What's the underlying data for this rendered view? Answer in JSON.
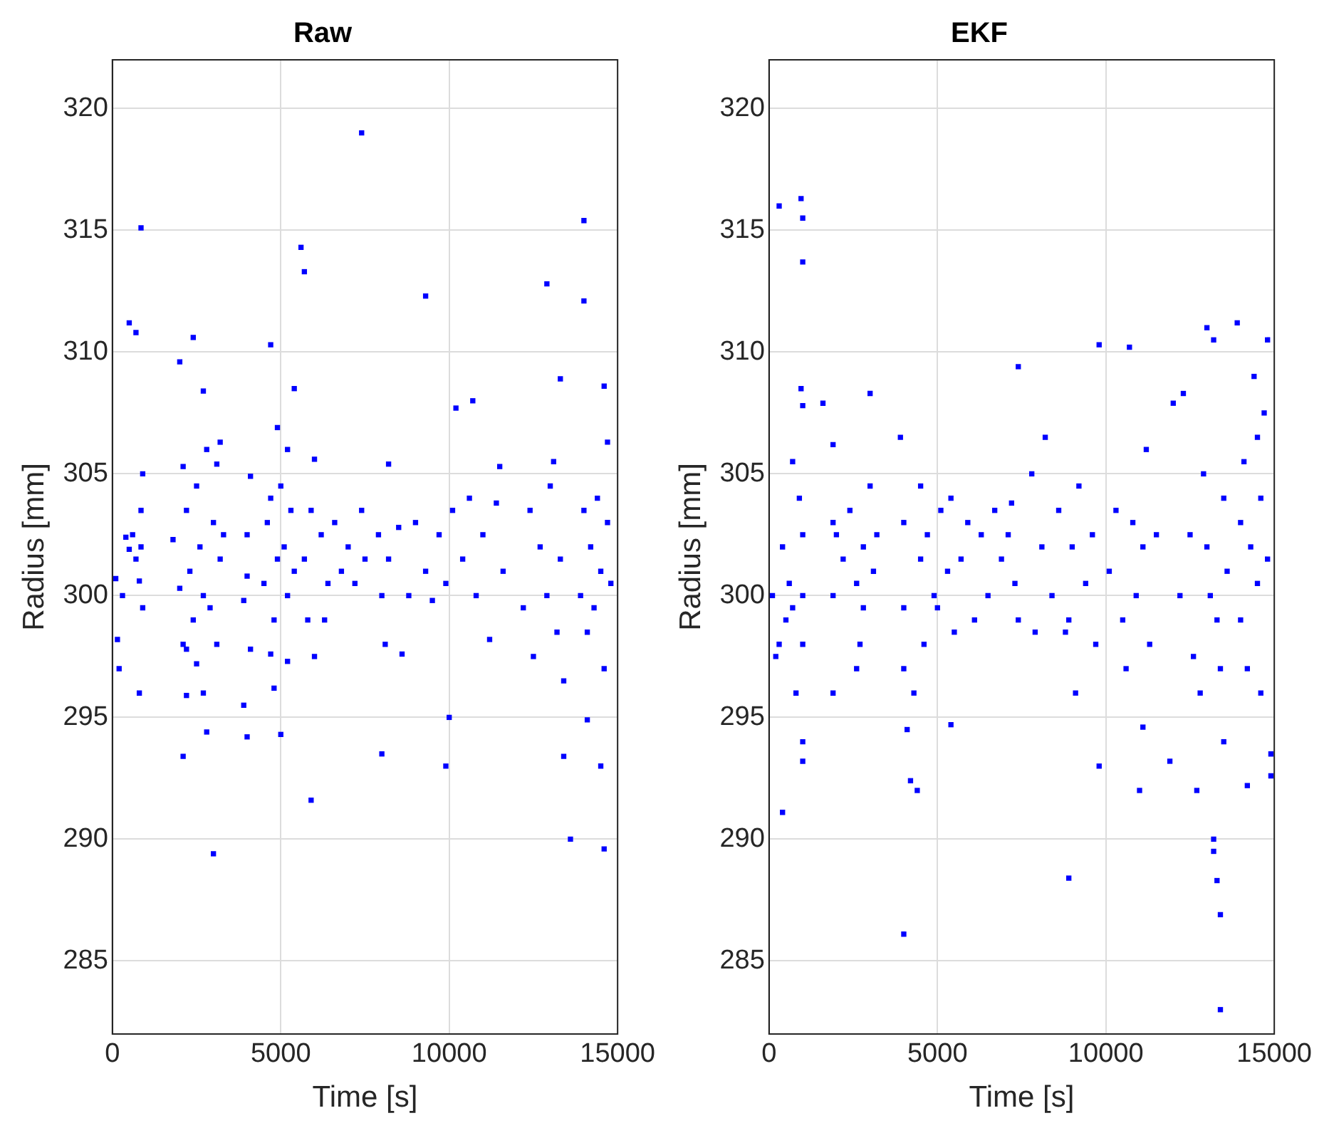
{
  "chart_data": [
    {
      "type": "scatter",
      "title": "Raw",
      "xlabel": "Time [s]",
      "ylabel": "Radius [mm]",
      "xlim": [
        0,
        15000
      ],
      "xticks": [
        0,
        5000,
        10000,
        15000
      ],
      "ylim": [
        282,
        322
      ],
      "yticks": [
        285,
        290,
        295,
        300,
        305,
        310,
        315,
        320
      ],
      "grid": true,
      "marker": "square",
      "legend": false,
      "series": [
        {
          "color": "#0000ff",
          "x": [
            100,
            150,
            200,
            300,
            400,
            500,
            600,
            700,
            800,
            850,
            900,
            800,
            850,
            900,
            500,
            700,
            850,
            1800,
            2000,
            2100,
            2100,
            2200,
            2300,
            2400,
            2500,
            2600,
            2700,
            2800,
            2900,
            3000,
            3100,
            3200,
            3300,
            2500,
            2700,
            3100,
            2200,
            2000,
            2400,
            2200,
            2100,
            2800,
            3000,
            2700,
            3200,
            3900,
            4000,
            4100,
            4000,
            4100,
            3900,
            4000,
            4500,
            4600,
            4700,
            4800,
            4900,
            5000,
            5100,
            5200,
            5300,
            5400,
            4700,
            4900,
            5200,
            5400,
            4700,
            4800,
            5000,
            5200,
            5700,
            5800,
            5900,
            6000,
            6200,
            6400,
            6600,
            6800,
            7000,
            7200,
            7400,
            7500,
            5600,
            5700,
            5900,
            7400,
            6000,
            6300,
            7900,
            8000,
            8100,
            8200,
            8500,
            8800,
            9000,
            9300,
            9500,
            9700,
            8000,
            8200,
            9300,
            8600,
            9900,
            10100,
            10000,
            9900,
            10200,
            10400,
            10600,
            10800,
            11000,
            11200,
            11400,
            11600,
            10700,
            11500,
            12200,
            12400,
            12500,
            12700,
            12900,
            13000,
            13200,
            13300,
            13400,
            12900,
            13300,
            13600,
            13400,
            13100,
            13900,
            14000,
            14100,
            14200,
            14300,
            14400,
            14500,
            14600,
            14700,
            14800,
            14000,
            14000,
            14100,
            14500,
            14600,
            14600,
            14700
          ],
          "values": [
            300.7,
            298.2,
            297.0,
            300.0,
            302.4,
            301.9,
            302.5,
            301.5,
            300.6,
            303.5,
            305.0,
            296.0,
            302.0,
            299.5,
            311.2,
            310.8,
            315.1,
            302.3,
            300.3,
            305.3,
            298.0,
            303.5,
            301.0,
            299.0,
            304.5,
            302.0,
            300.0,
            306.0,
            299.5,
            303.0,
            305.4,
            301.5,
            302.5,
            297.2,
            296.0,
            298.0,
            297.8,
            309.6,
            310.6,
            295.9,
            293.4,
            294.4,
            289.4,
            308.4,
            306.3,
            299.8,
            302.5,
            304.9,
            300.8,
            297.8,
            295.5,
            294.2,
            300.5,
            303.0,
            304.0,
            299.0,
            301.5,
            304.5,
            302.0,
            300.0,
            303.5,
            301.0,
            310.3,
            306.9,
            306.0,
            308.5,
            297.6,
            296.2,
            294.3,
            297.3,
            301.5,
            299.0,
            303.5,
            297.5,
            302.5,
            300.5,
            303.0,
            301.0,
            302.0,
            300.5,
            303.5,
            301.5,
            314.3,
            313.3,
            291.6,
            319.0,
            305.6,
            299.0,
            302.5,
            300.0,
            298.0,
            301.5,
            302.8,
            300.0,
            303.0,
            301.0,
            299.8,
            302.5,
            293.5,
            305.4,
            312.3,
            297.6,
            300.5,
            303.5,
            295.0,
            293.0,
            307.7,
            301.5,
            304.0,
            300.0,
            302.5,
            298.2,
            303.8,
            301.0,
            308.0,
            305.3,
            299.5,
            303.5,
            297.5,
            302.0,
            300.0,
            304.5,
            298.5,
            301.5,
            296.5,
            312.8,
            308.9,
            290.0,
            293.4,
            305.5,
            300.0,
            303.5,
            298.5,
            302.0,
            299.5,
            304.0,
            301.0,
            297.0,
            303.0,
            300.5,
            315.4,
            312.1,
            294.9,
            293.0,
            289.6,
            308.6,
            306.3
          ]
        }
      ]
    },
    {
      "type": "scatter",
      "title": "EKF",
      "xlabel": "Time [s]",
      "ylabel": "Radius [mm]",
      "xlim": [
        0,
        15000
      ],
      "xticks": [
        0,
        5000,
        10000,
        15000
      ],
      "ylim": [
        282,
        322
      ],
      "yticks": [
        285,
        290,
        295,
        300,
        305,
        310,
        315,
        320
      ],
      "grid": true,
      "marker": "square",
      "legend": false,
      "series": [
        {
          "color": "#0000ff",
          "x": [
            100,
            200,
            300,
            400,
            400,
            300,
            500,
            600,
            700,
            800,
            900,
            1000,
            1000,
            1000,
            1000,
            1000,
            950,
            1000,
            950,
            1000,
            1000,
            700,
            1600,
            1900,
            1900,
            1900,
            1900,
            2000,
            2200,
            2400,
            2600,
            2800,
            3000,
            3100,
            3200,
            2600,
            2700,
            3000,
            2800,
            3900,
            4000,
            4000,
            4000,
            4100,
            4200,
            4300,
            4000,
            4400,
            4500,
            4600,
            4700,
            4900,
            5100,
            5300,
            5400,
            5500,
            5000,
            4500,
            5400,
            5700,
            5900,
            6100,
            6300,
            6500,
            6700,
            6900,
            7100,
            7300,
            7400,
            7200,
            7400,
            7800,
            7900,
            8100,
            8200,
            8400,
            8600,
            8800,
            9000,
            9100,
            8900,
            9200,
            9400,
            9600,
            9700,
            9800,
            9800,
            8900,
            10100,
            10300,
            10500,
            10600,
            10700,
            10800,
            10900,
            11000,
            11100,
            11300,
            11500,
            11100,
            11200,
            11900,
            12000,
            12200,
            12300,
            12500,
            12600,
            12700,
            12800,
            12900,
            13000,
            13100,
            13200,
            13300,
            13400,
            13200,
            13300,
            13400,
            13200,
            13500,
            13600,
            13400,
            13000,
            13500,
            13900,
            14000,
            14000,
            14100,
            14200,
            14300,
            14400,
            14500,
            14600,
            14600,
            14700,
            14800,
            14800,
            14900,
            14900,
            14200,
            14500
          ],
          "values": [
            300.0,
            297.5,
            298.0,
            302.0,
            291.1,
            316.0,
            299.0,
            300.5,
            305.5,
            296.0,
            304.0,
            302.5,
            300.0,
            298.0,
            294.0,
            293.2,
            308.5,
            307.8,
            316.3,
            315.5,
            313.7,
            299.5,
            307.9,
            306.2,
            303.0,
            300.0,
            296.0,
            302.5,
            301.5,
            303.5,
            300.5,
            302.0,
            304.5,
            301.0,
            302.5,
            297.0,
            298.0,
            308.3,
            299.5,
            306.5,
            303.0,
            299.5,
            297.0,
            294.5,
            292.4,
            296.0,
            286.1,
            292.0,
            301.5,
            298.0,
            302.5,
            300.0,
            303.5,
            301.0,
            304.0,
            298.5,
            299.5,
            304.5,
            294.7,
            301.5,
            303.0,
            299.0,
            302.5,
            300.0,
            303.5,
            301.5,
            302.5,
            300.5,
            309.4,
            303.8,
            299.0,
            305.0,
            298.5,
            302.0,
            306.5,
            300.0,
            303.5,
            298.5,
            302.0,
            296.0,
            288.4,
            304.5,
            300.5,
            302.5,
            298.0,
            310.3,
            293.0,
            299.0,
            301.0,
            303.5,
            299.0,
            297.0,
            310.2,
            303.0,
            300.0,
            292.0,
            302.0,
            298.0,
            302.5,
            294.6,
            306.0,
            293.2,
            307.9,
            300.0,
            308.3,
            302.5,
            297.5,
            292.0,
            296.0,
            305.0,
            302.0,
            300.0,
            310.5,
            299.0,
            297.0,
            290.0,
            288.3,
            286.9,
            289.5,
            304.0,
            301.0,
            283.0,
            311.0,
            294.0,
            311.2,
            303.0,
            299.0,
            305.5,
            297.0,
            302.0,
            309.0,
            300.5,
            304.0,
            296.0,
            307.5,
            301.5,
            310.5,
            293.5,
            292.6,
            292.2,
            306.5
          ]
        }
      ]
    }
  ]
}
